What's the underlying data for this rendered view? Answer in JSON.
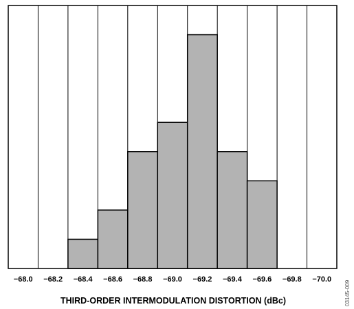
{
  "chart_data": {
    "type": "bar",
    "x": [
      -68.0,
      -68.2,
      -68.4,
      -68.6,
      -68.8,
      -69.0,
      -69.2,
      -69.4,
      -69.6,
      -69.8,
      -70.0
    ],
    "values": [
      0,
      0,
      1,
      2,
      4,
      5,
      8,
      4,
      3,
      0,
      0
    ],
    "xticks": [
      "−68.0",
      "−68.2",
      "−68.4",
      "−68.6",
      "−68.8",
      "−69.0",
      "−69.2",
      "−69.4",
      "−69.6",
      "−69.8",
      "−70.0"
    ],
    "xlabel": "THIRD-ORDER INTERMODULATION DISTORTION (dBc)",
    "ylabel": "",
    "ylim": [
      0,
      9
    ],
    "grid": "vertical",
    "bar_color": "#b3b3b3",
    "figure_id": "03145-009"
  }
}
